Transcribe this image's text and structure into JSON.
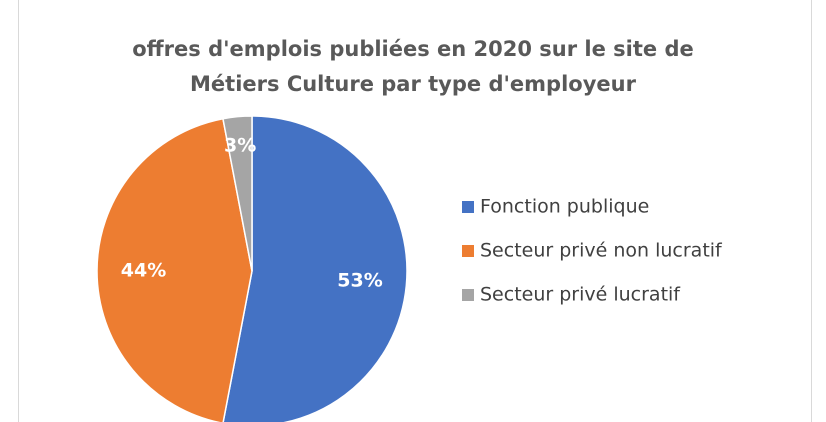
{
  "chart_data": {
    "type": "pie",
    "title": [
      "offres d'emplois publiées en 2020 sur le site de",
      "Métiers Culture par type d'employeur"
    ],
    "categories": [
      "Fonction publique",
      "Secteur privé non lucratif",
      "Secteur privé lucratif"
    ],
    "values": [
      53,
      44,
      3
    ],
    "value_labels": [
      "53%",
      "44%",
      "3%"
    ],
    "colors": [
      "#4472c4",
      "#ed7d31",
      "#a5a5a5"
    ],
    "legend": "right"
  }
}
